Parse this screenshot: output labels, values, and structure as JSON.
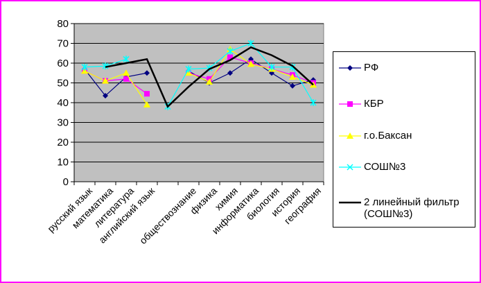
{
  "chart_data": {
    "type": "line",
    "categories": [
      "русский язык",
      "математика",
      "литература",
      "английский язык",
      "обществознание",
      "физика",
      "химия",
      "информатика",
      "биология",
      "история",
      "география"
    ],
    "categories_note": "",
    "x": [
      "русский язык",
      "математика",
      "литература",
      "английский язык",
      "",
      "обществознание",
      "физика",
      "химия",
      "информатика",
      "биология",
      "история",
      "география"
    ],
    "ylim": [
      0,
      80
    ],
    "yticks": [
      0,
      10,
      20,
      30,
      40,
      50,
      60,
      70,
      80
    ],
    "grid": true,
    "legend": "right",
    "series": [
      {
        "name": "РФ",
        "color": "#000080",
        "marker": "diamond",
        "values": [
          57,
          43.5,
          53,
          55,
          null,
          56,
          50,
          55,
          62,
          55,
          48.5,
          51.5
        ]
      },
      {
        "name": "КБР",
        "color": "#ff00ff",
        "marker": "square",
        "values": [
          56,
          51,
          52,
          44.5,
          null,
          55,
          52,
          63,
          60,
          57,
          54,
          50
        ]
      },
      {
        "name": "г.о.Баксан",
        "color": "#ffff00",
        "marker": "triangle",
        "values": [
          56,
          51,
          55,
          39,
          null,
          55,
          50.5,
          67,
          59.5,
          57,
          53,
          49
        ]
      },
      {
        "name": "СОШ№3",
        "color": "#00ffff",
        "marker": "x",
        "values": [
          58,
          58.5,
          62,
          null,
          38,
          57,
          57.5,
          66,
          70,
          58,
          58,
          40
        ]
      },
      {
        "name": "2 линейный фильтр (СОШ№3)",
        "color": "#000000",
        "marker": "none",
        "values": [
          null,
          58,
          60,
          62,
          38,
          48,
          57,
          61.5,
          68,
          64,
          58.6,
          49
        ]
      }
    ]
  }
}
